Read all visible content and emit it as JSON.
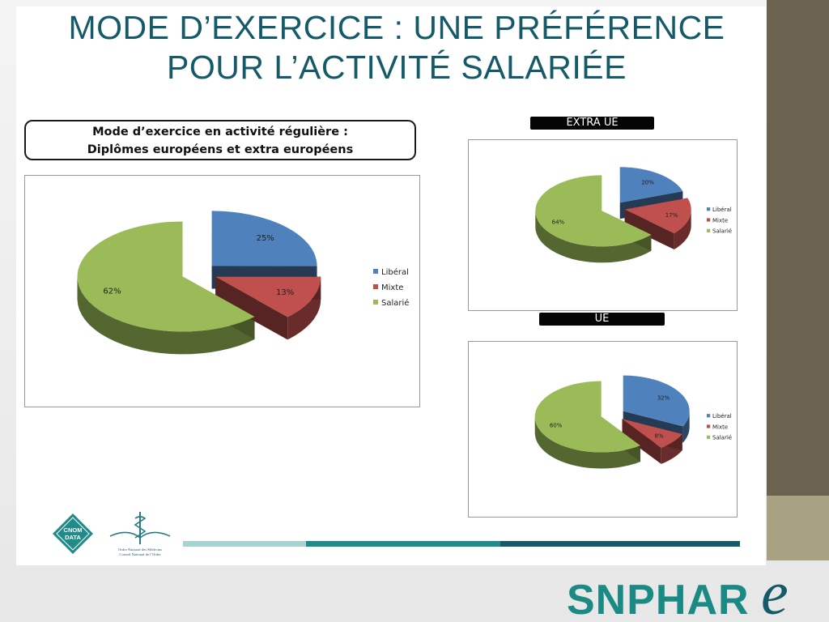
{
  "slide": {
    "title_line1": "MODE D’EXERCICE : UNE PRÉFÉRENCE",
    "title_line2": "POUR L’ACTIVITÉ SALARIÉE",
    "caption_line1": "Mode d’exercice en activité régulière :",
    "caption_line2": "Diplômes européens et extra européens",
    "tag_extra": "EXTRA UE",
    "tag_ue": "UE"
  },
  "logos": {
    "cnom_line1": "CNOM",
    "cnom_line2": "DATA",
    "ordre_line1": "Ordre National des Médecins",
    "ordre_line2": "Conseil National de l’Ordre",
    "snphar": "SNPHAR",
    "snphar_e": "e"
  },
  "colors": {
    "title": "#155a68",
    "liberal": "#4f81bd",
    "mixte": "#c0504d",
    "salarie": "#9bbb59",
    "side_dark": "#6b6350",
    "side_light": "#a8a283",
    "brand_teal": "#1b8a85"
  },
  "chart_data": [
    {
      "type": "pie",
      "title": "",
      "categories": [
        "Libéral",
        "Mixte",
        "Salarié"
      ],
      "values": [
        25,
        13,
        62
      ],
      "labels": [
        "25%",
        "13%",
        "62%"
      ],
      "legend": "right"
    },
    {
      "type": "pie",
      "title": "EXTRA UE",
      "categories": [
        "Libéral",
        "Mixte",
        "Salarié"
      ],
      "values": [
        20,
        17,
        64
      ],
      "labels": [
        "20%",
        "17%",
        "64%"
      ],
      "legend": "right"
    },
    {
      "type": "pie",
      "title": "UE",
      "categories": [
        "Libéral",
        "Mixte",
        "Salarié"
      ],
      "values": [
        32,
        8,
        60
      ],
      "labels": [
        "32%",
        "8%",
        "60%"
      ],
      "legend": "right"
    }
  ]
}
